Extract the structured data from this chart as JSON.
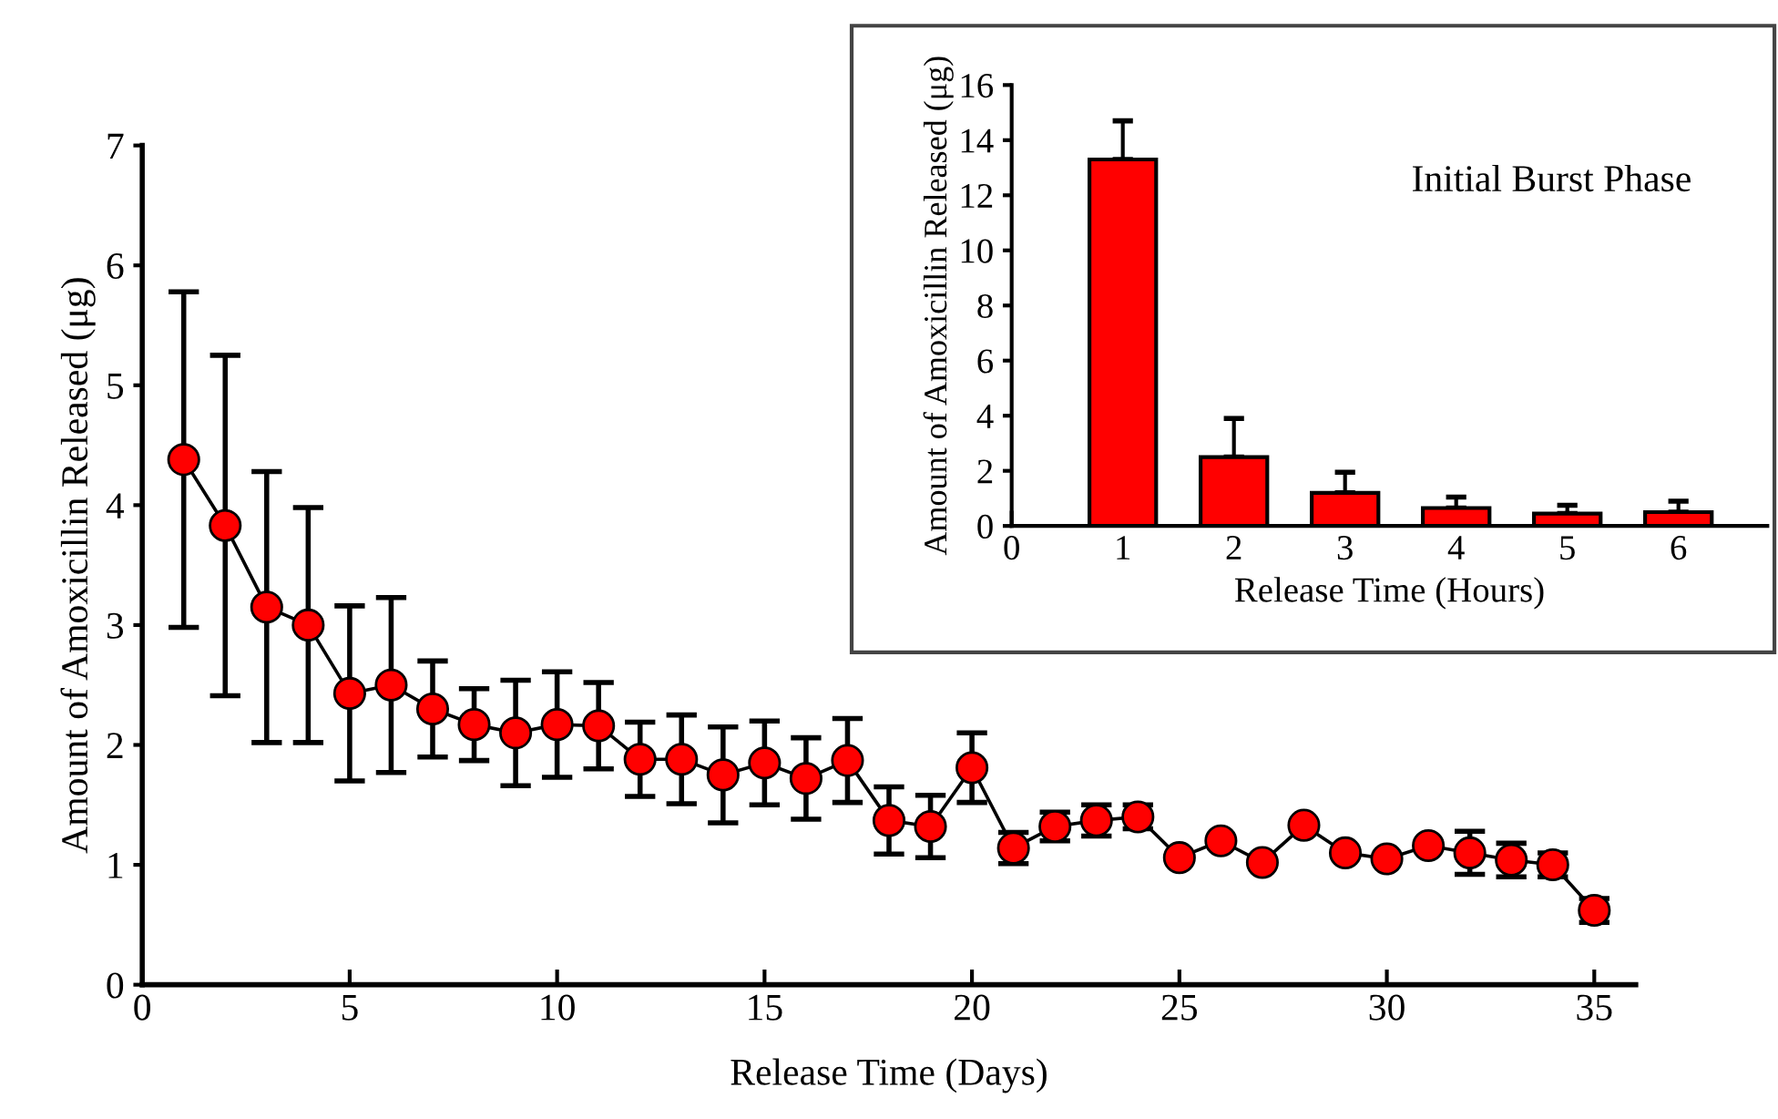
{
  "chart_data": [
    {
      "type": "line",
      "xlabel": "Release Time (Days)",
      "ylabel": "Amount of Amoxicillin Released (μg)",
      "x": [
        1,
        2,
        3,
        4,
        5,
        6,
        7,
        8,
        9,
        10,
        11,
        12,
        13,
        14,
        15,
        16,
        17,
        18,
        19,
        20,
        21,
        22,
        23,
        24,
        25,
        26,
        27,
        28,
        29,
        30,
        31,
        32,
        33,
        34,
        35
      ],
      "series": [
        {
          "color": "#ff0000",
          "values": [
            4.38,
            3.83,
            3.15,
            3.0,
            2.43,
            2.5,
            2.3,
            2.17,
            2.1,
            2.17,
            2.16,
            1.88,
            1.88,
            1.75,
            1.85,
            1.72,
            1.87,
            1.37,
            1.32,
            1.81,
            1.14,
            1.32,
            1.37,
            1.4,
            1.06,
            1.2,
            1.02,
            1.33,
            1.1,
            1.05,
            1.16,
            1.1,
            1.04,
            1.0,
            0.62
          ],
          "errors": [
            1.4,
            1.42,
            1.13,
            0.98,
            0.73,
            0.73,
            0.4,
            0.3,
            0.44,
            0.44,
            0.36,
            0.31,
            0.37,
            0.4,
            0.35,
            0.34,
            0.35,
            0.28,
            0.26,
            0.29,
            0.13,
            0.12,
            0.13,
            0.1,
            null,
            null,
            null,
            null,
            null,
            null,
            null,
            0.18,
            0.14,
            0.1,
            0.1
          ]
        }
      ],
      "marker": "circle",
      "line_style": "solid",
      "grid": false,
      "legend": false,
      "xlim": [
        0,
        36
      ],
      "xticks": [
        0,
        5,
        10,
        15,
        20,
        25,
        30,
        35
      ],
      "ylim": [
        0,
        7
      ],
      "yticks": [
        0,
        1,
        2,
        3,
        4,
        5,
        6,
        7
      ]
    },
    {
      "type": "bar",
      "xlabel": "Release Time (Hours)",
      "ylabel": "Amount of Amoxicillin Released (μg)",
      "annotations": [
        "Initial Burst Phase"
      ],
      "x": [
        1,
        2,
        3,
        4,
        5,
        6
      ],
      "series": [
        {
          "color": "#ff0000",
          "values": [
            13.3,
            2.5,
            1.2,
            0.65,
            0.45,
            0.5
          ],
          "errors": [
            [
              13.3,
              14.7
            ],
            [
              2.5,
              3.9
            ],
            [
              1.2,
              1.95
            ],
            [
              0.65,
              1.05
            ],
            [
              0.45,
              0.75
            ],
            [
              0.5,
              0.9
            ]
          ]
        }
      ],
      "grid": false,
      "legend": false,
      "xlim": [
        0,
        6.8
      ],
      "xticks": [
        0,
        1,
        2,
        3,
        4,
        5,
        6
      ],
      "ylim": [
        0,
        16
      ],
      "yticks": [
        0,
        2,
        4,
        6,
        8,
        10,
        12,
        14,
        16
      ]
    }
  ]
}
